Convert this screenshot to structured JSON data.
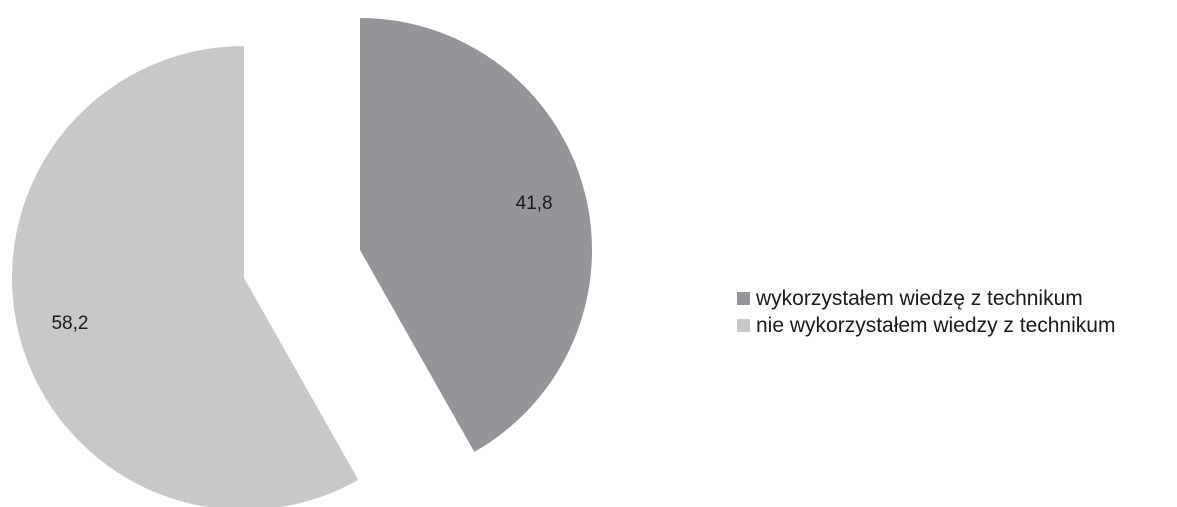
{
  "chart_data": {
    "type": "pie",
    "title": "",
    "categories": [
      "wykorzystałem wiedzę z technikum",
      "nie wykorzystałem wiedzy z technikum"
    ],
    "values": [
      41.8,
      58.2
    ],
    "value_labels": [
      "41,8",
      "58,2"
    ],
    "colors": [
      "#939598",
      "#c7c8ca"
    ],
    "exploded": true,
    "start": "12 o'clock",
    "direction": "clockwise",
    "legend": "right"
  }
}
